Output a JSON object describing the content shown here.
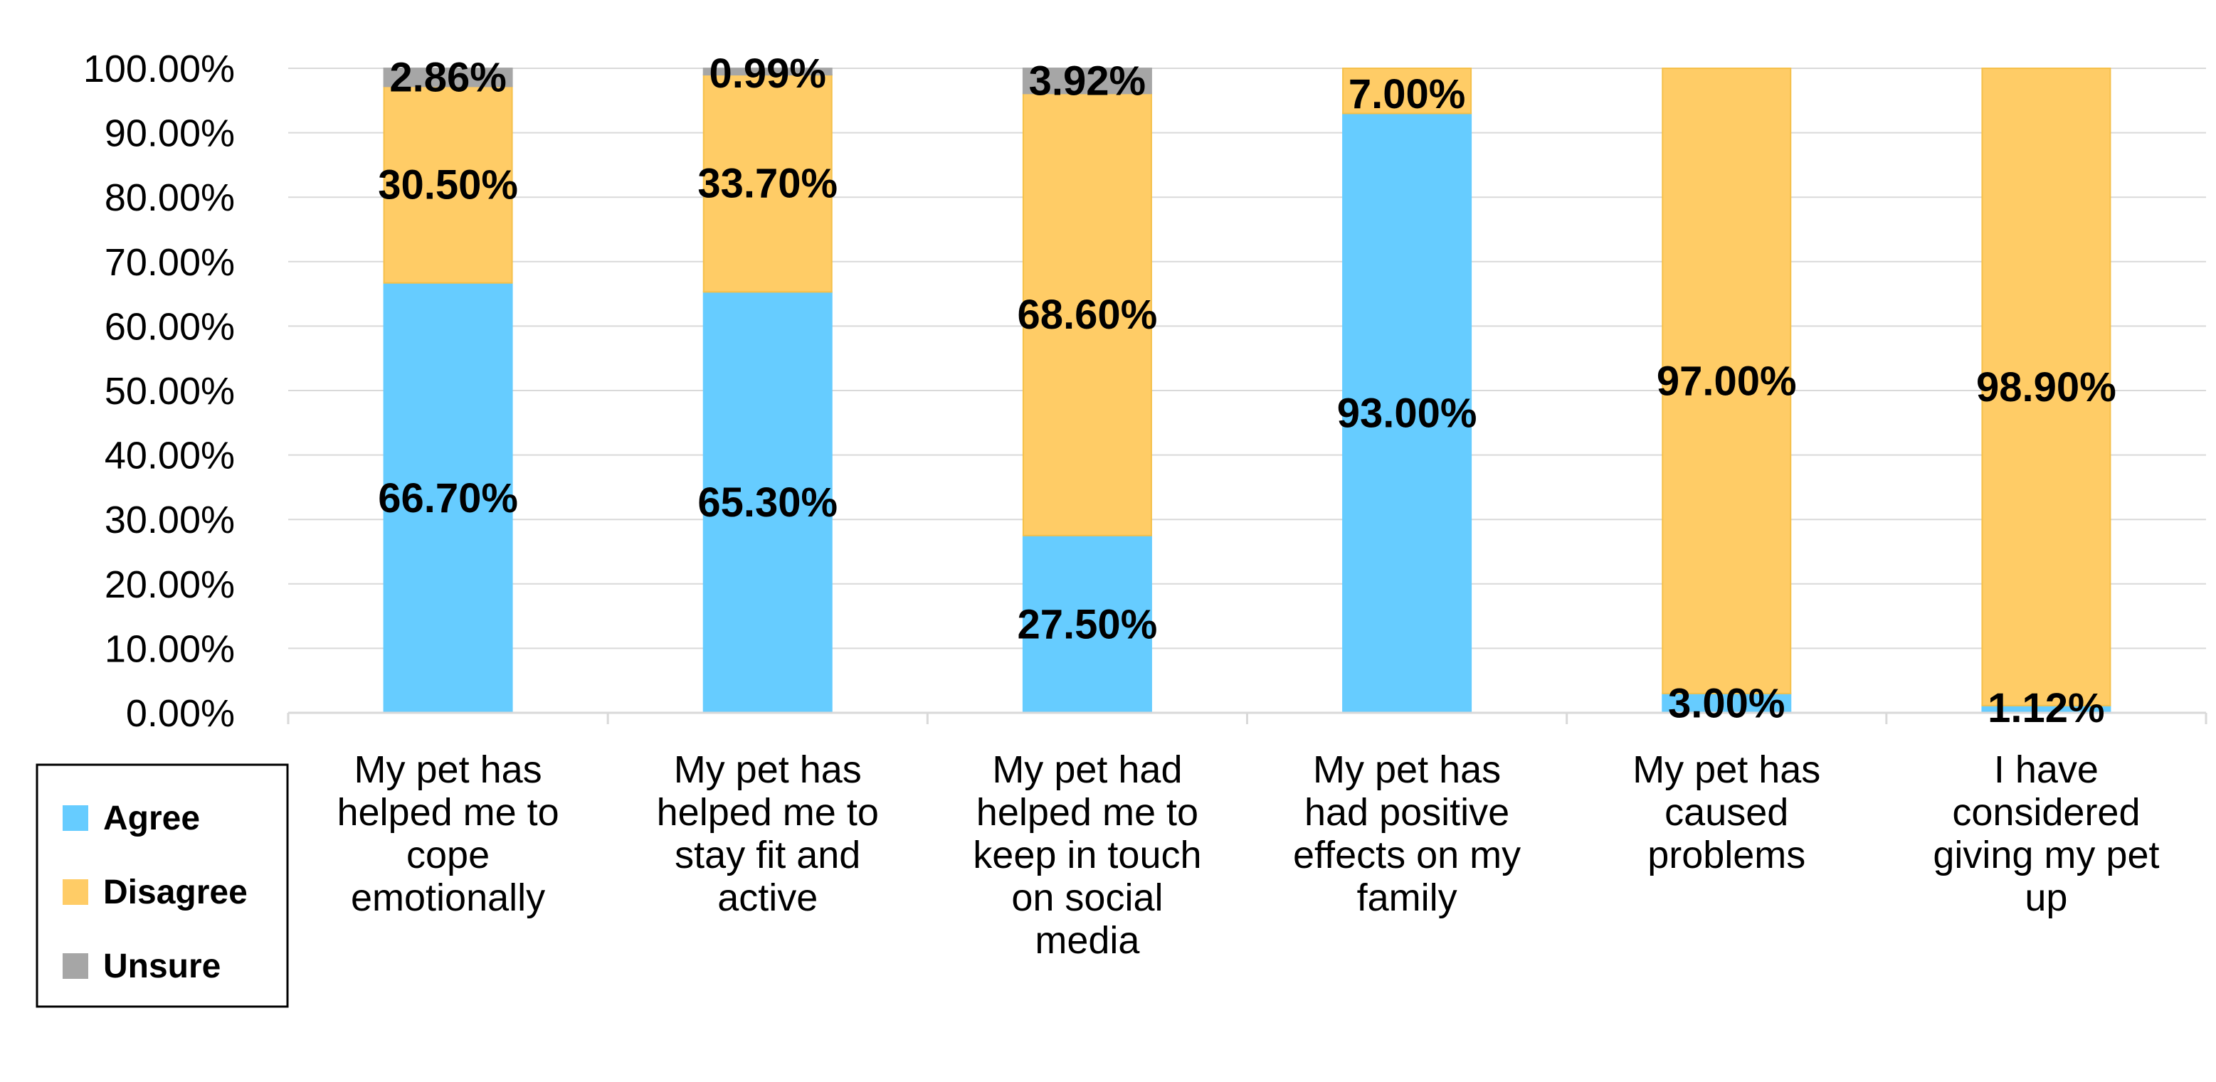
{
  "chart_data": {
    "type": "bar",
    "stacked": true,
    "title": "",
    "xlabel": "",
    "ylabel": "",
    "ylim": [
      0,
      100
    ],
    "y_ticks": [
      "0.00%",
      "10.00%",
      "20.00%",
      "30.00%",
      "40.00%",
      "50.00%",
      "60.00%",
      "70.00%",
      "80.00%",
      "90.00%",
      "100.00%"
    ],
    "grid": true,
    "legend_position": "bottom-left",
    "categories": [
      [
        "My pet has",
        "helped me to",
        "cope",
        "emotionally"
      ],
      [
        "My pet has",
        "helped me to",
        "stay fit and",
        "active"
      ],
      [
        "My pet had",
        "helped me to",
        "keep in touch",
        "on social",
        "media"
      ],
      [
        "My pet has",
        "had positive",
        "effects on my",
        "family"
      ],
      [
        "My pet has",
        "caused",
        "problems"
      ],
      [
        "I have",
        "considered",
        "giving my pet",
        "up"
      ]
    ],
    "series": [
      {
        "name": "Agree",
        "color": "#66CCFF",
        "values": [
          66.7,
          65.3,
          27.5,
          93.0,
          3.0,
          1.12
        ],
        "labels": [
          "66.70%",
          "65.30%",
          "27.50%",
          "93.00%",
          "3.00%",
          "1.12%"
        ]
      },
      {
        "name": "Disagree",
        "color": "#FFCC66",
        "values": [
          30.5,
          33.7,
          68.6,
          7.0,
          97.0,
          98.9
        ],
        "labels": [
          "30.50%",
          "33.70%",
          "68.60%",
          "7.00%",
          "97.00%",
          "98.90%"
        ]
      },
      {
        "name": "Unsure",
        "color": "#A6A6A6",
        "values": [
          2.86,
          0.99,
          3.92,
          0,
          0,
          0
        ],
        "labels": [
          "2.86%",
          "0.99%",
          "3.92%",
          "",
          "",
          ""
        ]
      }
    ]
  }
}
